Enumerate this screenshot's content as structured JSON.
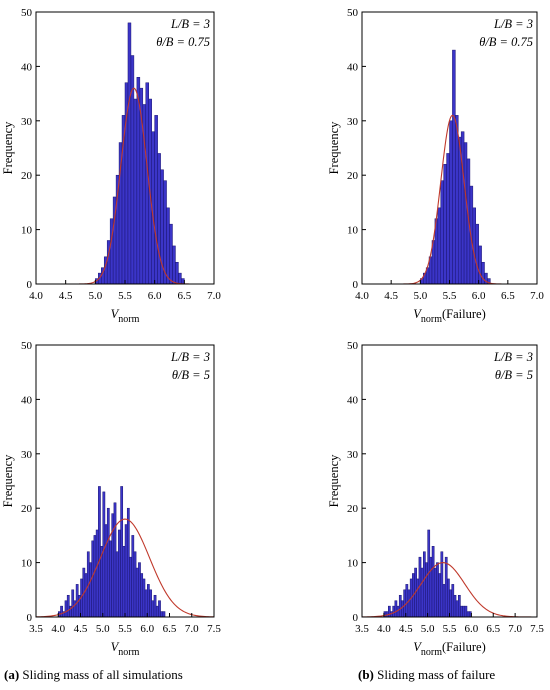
{
  "colors": {
    "bar_fill": "#3b35c8",
    "bar_edge": "#1a1470",
    "fit_curve": "#c0392b",
    "axis": "#000000"
  },
  "captions": {
    "left_letter": "(a)",
    "left_text": "Sliding mass of all simulations",
    "right_letter": "(b)",
    "right_text": "Sliding mass of failure"
  },
  "chart_data": [
    {
      "type": "bar",
      "panel": "top-left",
      "xlabel": "V",
      "xlabel_sub": "norm",
      "xlabel_suffix": "",
      "ylabel": "Frequency",
      "xlim": [
        4.0,
        7.0
      ],
      "ylim": [
        0,
        50
      ],
      "xticks": [
        "4.0",
        "4.5",
        "5.0",
        "5.5",
        "6.0",
        "6.5",
        "7.0"
      ],
      "yticks": [
        "0",
        "10",
        "20",
        "30",
        "40",
        "50"
      ],
      "annotation": [
        "L/B = 3",
        "θ/B = 0.75"
      ],
      "bin_width": 0.05,
      "bins_start": 5.0,
      "values": [
        1,
        2,
        3,
        5,
        8,
        12,
        16,
        20,
        26,
        31,
        37,
        48,
        42,
        34,
        38,
        36,
        33,
        37,
        34,
        28,
        31,
        24,
        21,
        19,
        14,
        11,
        7,
        4,
        2,
        1
      ],
      "fit": {
        "mean": 5.65,
        "sd": 0.22,
        "peak": 36
      }
    },
    {
      "type": "bar",
      "panel": "top-right",
      "xlabel": "V",
      "xlabel_sub": "norm",
      "xlabel_suffix": "(Failure)",
      "ylabel": "Frequency",
      "xlim": [
        4.0,
        7.0
      ],
      "ylim": [
        0,
        50
      ],
      "xticks": [
        "4.0",
        "4.5",
        "5.0",
        "5.5",
        "6.0",
        "6.5",
        "7.0"
      ],
      "yticks": [
        "0",
        "10",
        "20",
        "30",
        "40",
        "50"
      ],
      "annotation": [
        "L/B = 3",
        "θ/B = 0.75"
      ],
      "bin_width": 0.05,
      "bins_start": 5.0,
      "values": [
        1,
        2,
        3,
        5,
        8,
        12,
        14,
        19,
        22,
        24,
        30,
        43,
        31,
        27,
        28,
        26,
        23,
        18,
        14,
        11,
        7,
        4,
        2,
        1
      ],
      "fit": {
        "mean": 5.55,
        "sd": 0.2,
        "peak": 31
      }
    },
    {
      "type": "bar",
      "panel": "bottom-left",
      "xlabel": "V",
      "xlabel_sub": "norm",
      "xlabel_suffix": "",
      "ylabel": "Frequency",
      "xlim": [
        3.5,
        7.5
      ],
      "ylim": [
        0,
        50
      ],
      "xticks": [
        "3.5",
        "4.0",
        "4.5",
        "5.0",
        "5.5",
        "6.0",
        "6.5",
        "7.0",
        "7.5"
      ],
      "yticks": [
        "0",
        "10",
        "20",
        "30",
        "40",
        "50"
      ],
      "annotation": [
        "L/B = 3",
        "θ/B = 5"
      ],
      "bin_width": 0.05,
      "bins_start": 4.0,
      "values": [
        1,
        2,
        1,
        3,
        4,
        2,
        5,
        3,
        6,
        4,
        7,
        9,
        8,
        12,
        10,
        14,
        15,
        16,
        24,
        13,
        23,
        17,
        20,
        14,
        19,
        21,
        12,
        16,
        24,
        13,
        17,
        20,
        11,
        15,
        12,
        9,
        10,
        8,
        7,
        5,
        6,
        5,
        3,
        4,
        2,
        3,
        1,
        1
      ],
      "fit": {
        "mean": 5.5,
        "sd": 0.55,
        "peak": 18
      }
    },
    {
      "type": "bar",
      "panel": "bottom-right",
      "xlabel": "V",
      "xlabel_sub": "norm",
      "xlabel_suffix": "(Failure)",
      "ylabel": "Frequency",
      "xlim": [
        3.5,
        7.5
      ],
      "ylim": [
        0,
        50
      ],
      "xticks": [
        "3.5",
        "4.0",
        "4.5",
        "5.0",
        "5.5",
        "6.0",
        "6.5",
        "7.0",
        "7.5"
      ],
      "yticks": [
        "0",
        "10",
        "20",
        "30",
        "40",
        "50"
      ],
      "annotation": [
        "L/B = 3",
        "θ/B = 5"
      ],
      "bin_width": 0.05,
      "bins_start": 4.0,
      "values": [
        1,
        1,
        2,
        1,
        2,
        3,
        2,
        4,
        3,
        5,
        6,
        5,
        7,
        8,
        9,
        7,
        11,
        9,
        12,
        10,
        16,
        11,
        13,
        9,
        10,
        8,
        12,
        6,
        11,
        7,
        5,
        6,
        4,
        3,
        4,
        2,
        2,
        2,
        1,
        1
      ],
      "fit": {
        "mean": 5.35,
        "sd": 0.5,
        "peak": 10
      }
    }
  ]
}
